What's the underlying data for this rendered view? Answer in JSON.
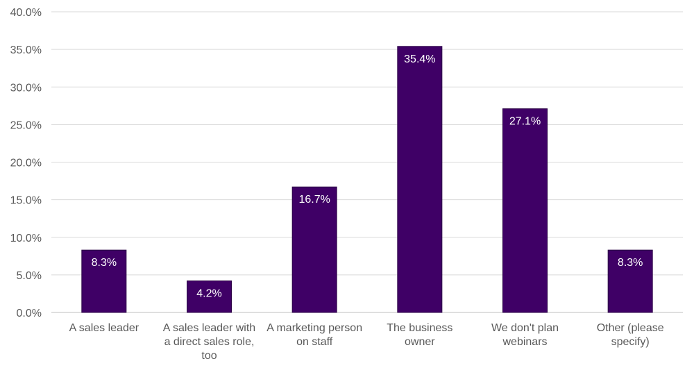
{
  "chart_data": {
    "type": "bar",
    "title": "",
    "xlabel": "",
    "ylabel": "",
    "categories": [
      [
        "A sales leader"
      ],
      [
        "A sales leader with",
        "a direct sales role,",
        "too"
      ],
      [
        "A marketing person",
        "on staff"
      ],
      [
        "The business",
        "owner"
      ],
      [
        "We don't plan",
        "webinars"
      ],
      [
        "Other (please",
        "specify)"
      ]
    ],
    "values": [
      8.3,
      4.2,
      16.7,
      35.4,
      27.1,
      8.3
    ],
    "data_labels": [
      "8.3%",
      "4.2%",
      "16.7%",
      "35.4%",
      "27.1%",
      "8.3%"
    ],
    "ylim": [
      0,
      40
    ],
    "yticks": [
      0,
      5,
      10,
      15,
      20,
      25,
      30,
      35,
      40
    ],
    "ytick_labels": [
      "0.0%",
      "5.0%",
      "10.0%",
      "15.0%",
      "20.0%",
      "25.0%",
      "30.0%",
      "35.0%",
      "40.0%"
    ],
    "grid": true,
    "legend": "none",
    "colors": {
      "bar": "#3f0066",
      "bar_edge": "#2a0045",
      "grid": "#d9d9d9",
      "axis": "#bfbfbf"
    }
  }
}
